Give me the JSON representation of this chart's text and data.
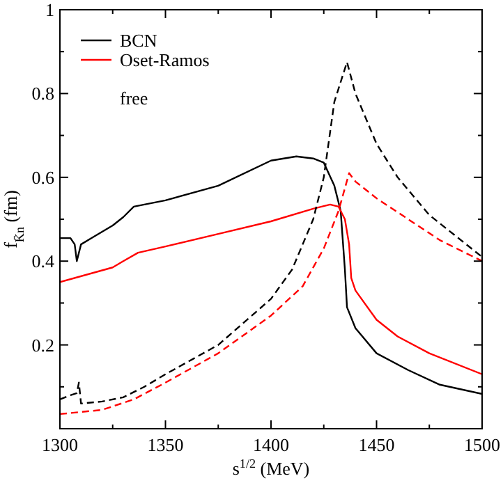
{
  "chart_data": {
    "type": "line",
    "xlabel": "s$^{1/2}$ (MeV)",
    "ylabel": "f$_{K̄n}$ (fm)",
    "annotations": [
      "free"
    ],
    "legend": "top left",
    "grid": false,
    "xlim": [
      1300,
      1500
    ],
    "ylim": [
      0,
      1
    ],
    "xticks": [
      1300,
      {
        "value": 1325,
        "label": null
      },
      1350,
      {
        "value": 1375,
        "label": null
      },
      1400,
      {
        "value": 1425,
        "label": null
      },
      1450,
      {
        "value": 1475,
        "label": null
      },
      1500
    ],
    "yticks": [
      {
        "value": 0.1,
        "label": null
      },
      0.2,
      {
        "value": 0.3,
        "label": null
      },
      0.4,
      {
        "value": 0.5,
        "label": null
      },
      0.6,
      {
        "value": 0.7,
        "label": null
      },
      0.8,
      {
        "value": 0.9,
        "label": null
      },
      1
    ],
    "series": [
      {
        "name": "BCN",
        "color": "#000000",
        "line_style": "solid",
        "x": [
          1300,
          1305,
          1307,
          1308,
          1309,
          1310,
          1315,
          1320,
          1325,
          1330,
          1335,
          1350,
          1375,
          1400,
          1412,
          1420,
          1425,
          1430,
          1433,
          1434,
          1435,
          1436,
          1440,
          1450,
          1465,
          1480,
          1500
        ],
        "values": [
          0.455,
          0.455,
          0.44,
          0.4,
          0.42,
          0.44,
          0.455,
          0.47,
          0.485,
          0.505,
          0.53,
          0.545,
          0.58,
          0.64,
          0.65,
          0.645,
          0.635,
          0.58,
          0.52,
          0.45,
          0.38,
          0.29,
          0.24,
          0.18,
          0.14,
          0.105,
          0.083
        ]
      },
      {
        "name": "Oset-Ramos",
        "color": "#ff0000",
        "line_style": "solid",
        "x": [
          1300,
          1325,
          1330,
          1337,
          1350,
          1375,
          1400,
          1420,
          1428,
          1432,
          1435,
          1437,
          1438,
          1440,
          1450,
          1460,
          1475,
          1500
        ],
        "values": [
          0.35,
          0.385,
          0.4,
          0.42,
          0.435,
          0.465,
          0.495,
          0.525,
          0.535,
          0.53,
          0.5,
          0.44,
          0.36,
          0.33,
          0.26,
          0.22,
          0.18,
          0.13
        ]
      },
      {
        "color": "#000000",
        "line_style": "dashed",
        "x": [
          1300,
          1305,
          1308,
          1309,
          1310,
          1320,
          1330,
          1340,
          1350,
          1375,
          1400,
          1410,
          1420,
          1425,
          1430,
          1436,
          1440,
          1450,
          1460,
          1475,
          1490,
          1500
        ],
        "values": [
          0.07,
          0.08,
          0.085,
          0.11,
          0.06,
          0.065,
          0.075,
          0.1,
          0.13,
          0.2,
          0.31,
          0.38,
          0.5,
          0.6,
          0.78,
          0.875,
          0.8,
          0.68,
          0.6,
          0.51,
          0.45,
          0.41
        ]
      },
      {
        "color": "#ff0000",
        "line_style": "dashed",
        "x": [
          1300,
          1320,
          1335,
          1350,
          1375,
          1400,
          1415,
          1425,
          1432,
          1437,
          1440,
          1450,
          1465,
          1480,
          1500
        ],
        "values": [
          0.035,
          0.045,
          0.07,
          0.11,
          0.18,
          0.27,
          0.34,
          0.43,
          0.52,
          0.61,
          0.59,
          0.55,
          0.5,
          0.45,
          0.4
        ]
      }
    ]
  }
}
